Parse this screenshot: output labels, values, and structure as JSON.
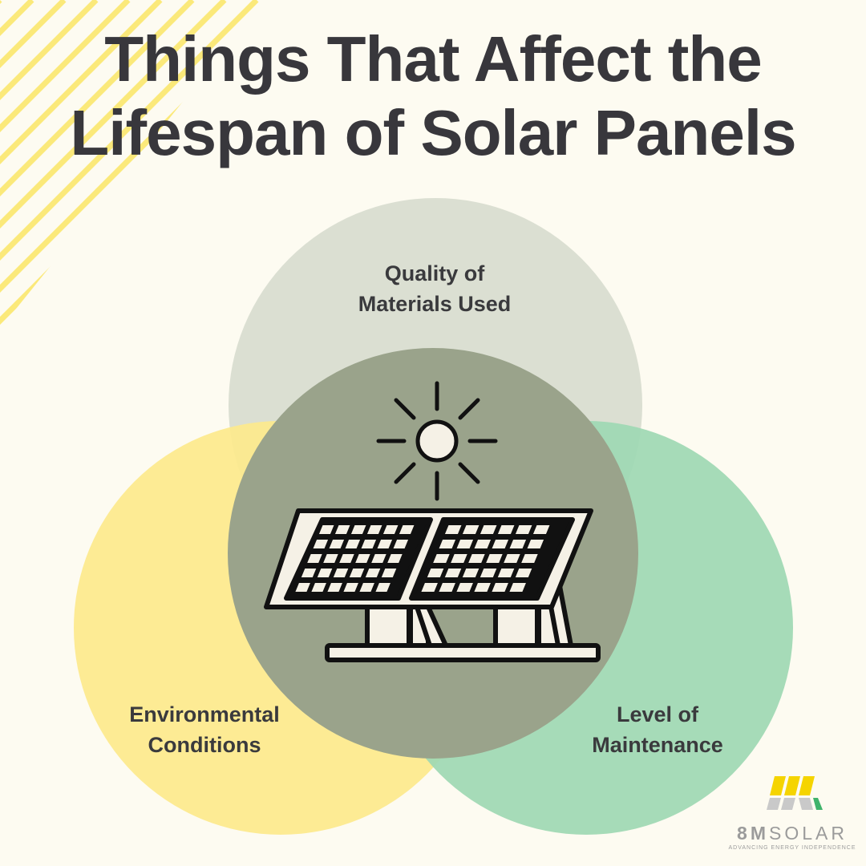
{
  "title": {
    "line1": "Things That Affect the",
    "line2": "Lifespan of Solar Panels"
  },
  "factors": {
    "top": {
      "line1": "Quality of",
      "line2": "Materials Used"
    },
    "left": {
      "line1": "Environmental",
      "line2": "Conditions"
    },
    "right": {
      "line1": "Level of",
      "line2": "Maintenance"
    }
  },
  "center_icon": "solar-panel-with-sun-icon",
  "colors": {
    "background": "#fdfbf1",
    "stripes": "#fbe97a",
    "circle_top": "#d8dccf",
    "circle_left": "#fde98c",
    "circle_right": "#9ed8b3",
    "circle_center": "#9aa38b",
    "text": "#38373c"
  },
  "logo": {
    "name_bold": "8M",
    "name_rest": "SOLAR",
    "tagline": "ADVANCING ENERGY INDEPENDENCE"
  }
}
